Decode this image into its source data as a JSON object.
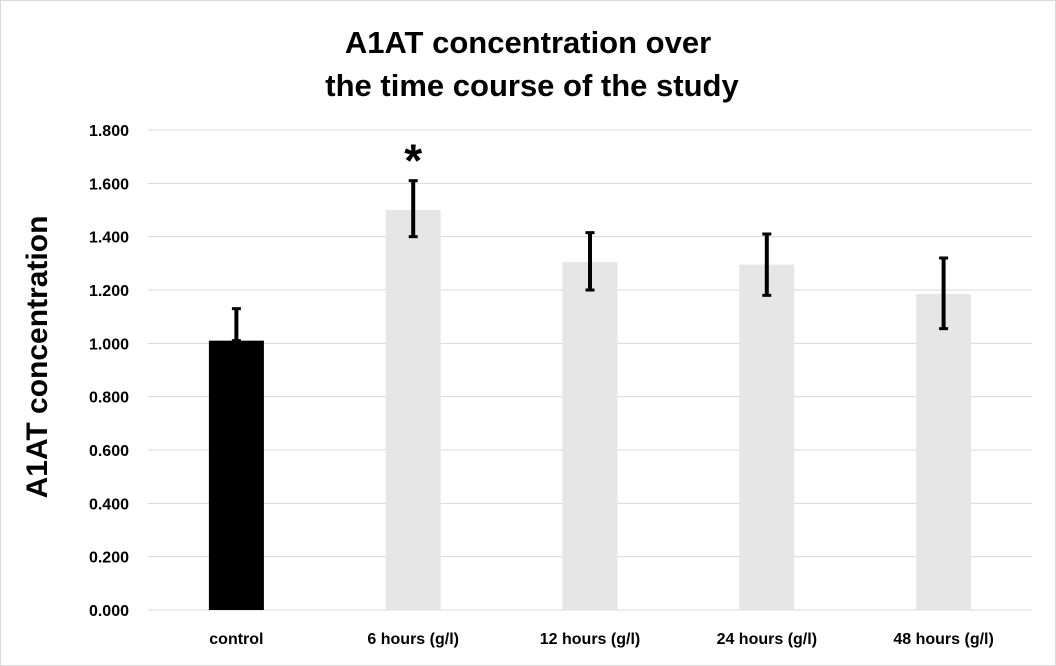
{
  "chart_data": {
    "type": "bar",
    "title": [
      "A1AT concentration over",
      "the time course of the study"
    ],
    "ylabel": "A1AT concentration",
    "xlabel": "",
    "ylim": [
      0,
      1.8
    ],
    "ytick_step": 0.2,
    "ytick_labels": [
      "0.000",
      "0.200",
      "0.400",
      "0.600",
      "0.800",
      "1.000",
      "1.200",
      "1.400",
      "1.600",
      "1.800"
    ],
    "grid": true,
    "legend": "none",
    "categories": [
      "control",
      "6 hours (g/l)",
      "12 hours (g/l)",
      "24 hours (g/l)",
      "48 hours (g/l)"
    ],
    "values": [
      1.01,
      1.5,
      1.305,
      1.295,
      1.185
    ],
    "error_upper": [
      1.13,
      1.61,
      1.415,
      1.41,
      1.32
    ],
    "error_lower": [
      1.01,
      1.4,
      1.2,
      1.18,
      1.055
    ],
    "annotations": [
      {
        "category": "6 hours (g/l)",
        "text": "*"
      }
    ],
    "colors": {
      "control": "#000000",
      "bar": "#e6e6e6",
      "error_bar": "#000000",
      "grid": "#d9d9d9"
    }
  }
}
